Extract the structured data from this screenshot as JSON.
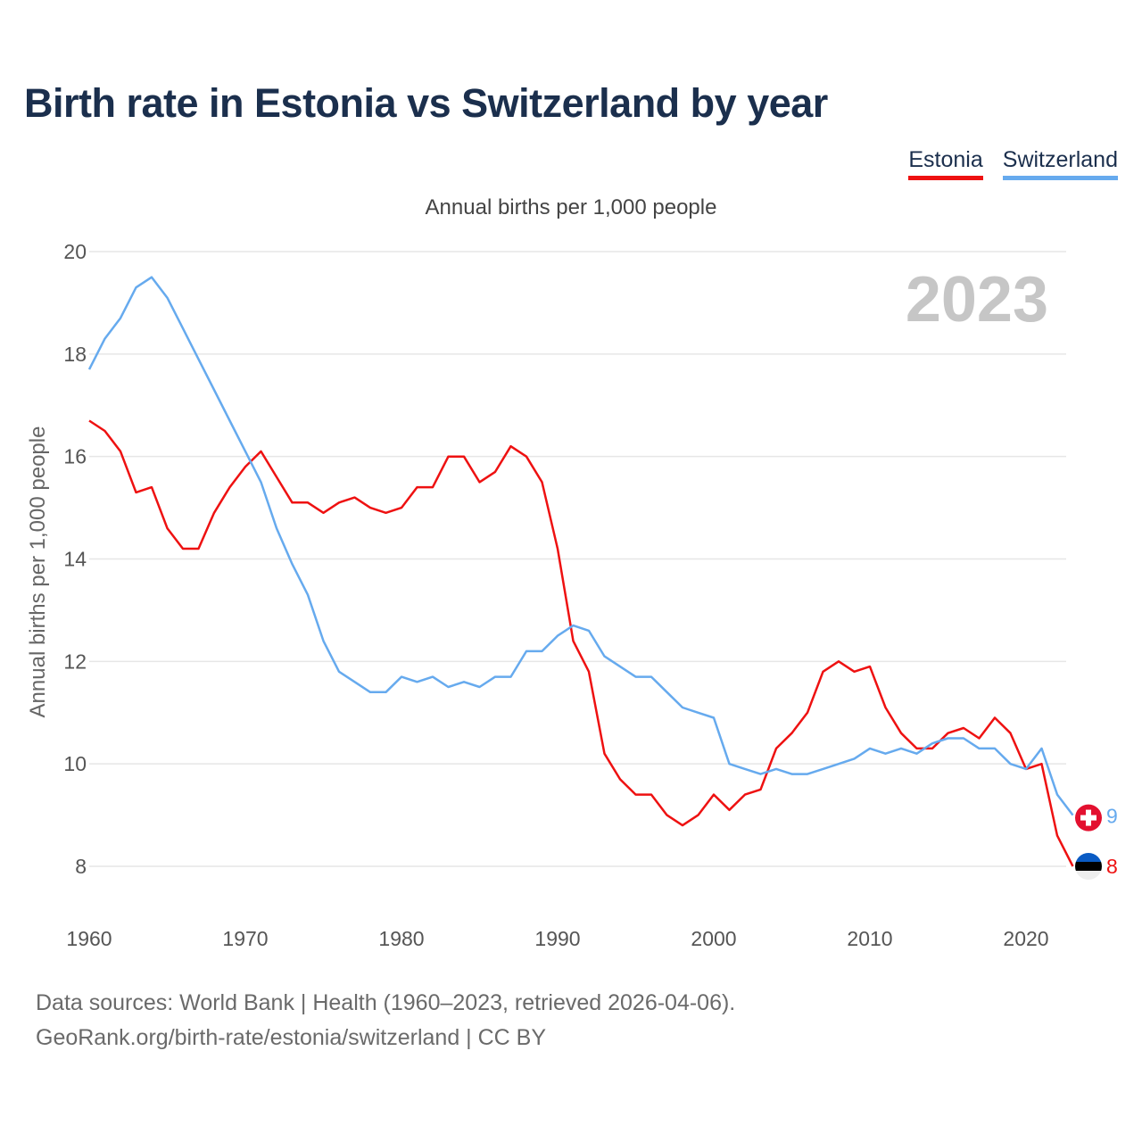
{
  "title": "Birth rate in Estonia vs Switzerland by year",
  "legend": [
    {
      "label": "Estonia",
      "color": "#ee1111"
    },
    {
      "label": "Switzerland",
      "color": "#66aaee"
    }
  ],
  "chart_data": {
    "type": "line",
    "title": "Annual births per 1,000 people",
    "ylabel": "Annual births per 1,000 people",
    "xlabel": "",
    "year_label": "2023",
    "xlim": [
      1960,
      2024
    ],
    "ylim": [
      7,
      20
    ],
    "x_ticks": [
      1960,
      1970,
      1980,
      1990,
      2000,
      2010,
      2020
    ],
    "y_ticks": [
      8,
      10,
      12,
      14,
      16,
      18,
      20
    ],
    "x": [
      1960,
      1961,
      1962,
      1963,
      1964,
      1965,
      1966,
      1967,
      1968,
      1969,
      1970,
      1971,
      1972,
      1973,
      1974,
      1975,
      1976,
      1977,
      1978,
      1979,
      1980,
      1981,
      1982,
      1983,
      1984,
      1985,
      1986,
      1987,
      1988,
      1989,
      1990,
      1991,
      1992,
      1993,
      1994,
      1995,
      1996,
      1997,
      1998,
      1999,
      2000,
      2001,
      2002,
      2003,
      2004,
      2005,
      2006,
      2007,
      2008,
      2009,
      2010,
      2011,
      2012,
      2013,
      2014,
      2015,
      2016,
      2017,
      2018,
      2019,
      2020,
      2021,
      2022,
      2023
    ],
    "series": [
      {
        "name": "Estonia",
        "color": "#ee1111",
        "end_label": "8",
        "values": [
          16.7,
          16.5,
          16.1,
          15.3,
          15.4,
          14.6,
          14.2,
          14.2,
          14.9,
          15.4,
          15.8,
          16.1,
          15.6,
          15.1,
          15.1,
          14.9,
          15.1,
          15.2,
          15.0,
          14.9,
          15.0,
          15.4,
          15.4,
          16.0,
          16.0,
          15.5,
          15.7,
          16.2,
          16.0,
          15.5,
          14.2,
          12.4,
          11.8,
          10.2,
          9.7,
          9.4,
          9.4,
          9.0,
          8.8,
          9.0,
          9.4,
          9.1,
          9.4,
          9.5,
          10.3,
          10.6,
          11.0,
          11.8,
          12.0,
          11.8,
          11.9,
          11.1,
          10.6,
          10.3,
          10.3,
          10.6,
          10.7,
          10.5,
          10.9,
          10.6,
          9.9,
          10.0,
          8.6,
          8.0
        ]
      },
      {
        "name": "Switzerland",
        "color": "#66aaee",
        "end_label": "9",
        "values": [
          17.7,
          18.3,
          18.7,
          19.3,
          19.5,
          19.1,
          18.5,
          17.9,
          17.3,
          16.7,
          16.1,
          15.5,
          14.6,
          13.9,
          13.3,
          12.4,
          11.8,
          11.6,
          11.4,
          11.4,
          11.7,
          11.6,
          11.7,
          11.5,
          11.6,
          11.5,
          11.7,
          11.7,
          12.2,
          12.2,
          12.5,
          12.7,
          12.6,
          12.1,
          11.9,
          11.7,
          11.7,
          11.4,
          11.1,
          11.0,
          10.9,
          10.0,
          9.9,
          9.8,
          9.9,
          9.8,
          9.8,
          9.9,
          10.0,
          10.1,
          10.3,
          10.2,
          10.3,
          10.2,
          10.4,
          10.5,
          10.5,
          10.3,
          10.3,
          10.0,
          9.9,
          10.3,
          9.4,
          9.0
        ]
      }
    ]
  },
  "source": {
    "line1": "Data sources: World Bank | Health (1960–2023, retrieved 2026-04-06).",
    "line2": "GeoRank.org/birth-rate/estonia/switzerland | CC BY"
  }
}
